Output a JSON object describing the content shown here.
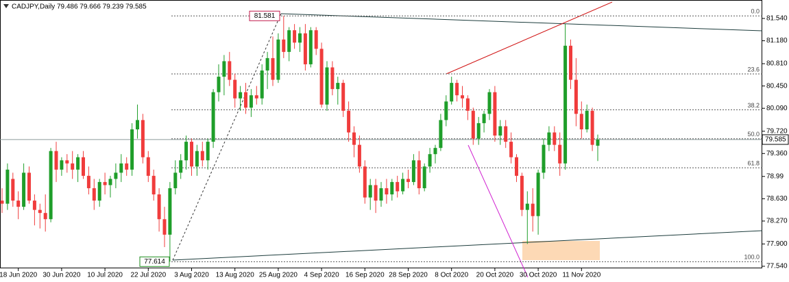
{
  "chart_data": {
    "type": "candlestick",
    "title": "CADJPY,Daily  79.486 79.666 79.239 79.585",
    "up_color": "#1f9e2a",
    "down_color": "#f03c3c",
    "series": {
      "open": [
        78.6,
        78.55,
        78.95,
        78.6,
        78.5,
        79.05,
        78.6,
        78.45,
        78.4,
        78.3,
        79.4,
        79.1,
        79.25,
        79.2,
        79.1,
        79.3,
        79,
        78.8,
        78.6,
        78.9,
        78.85,
        78.95,
        79.05,
        79.2,
        79.1,
        79.75,
        79.9,
        79.3,
        79,
        78.7,
        78.3,
        78.05,
        78.8,
        79.05,
        79.25,
        79.55,
        79.15,
        79.4,
        79.25,
        79.55,
        80.35,
        80.6,
        80.85,
        80.55,
        80.25,
        80.35,
        80.1,
        80.3,
        80.25,
        80.7,
        80.9,
        80.55,
        81.2,
        81,
        81.35,
        81.15,
        81.3,
        80.8,
        81.35,
        81.05,
        80.15,
        80.75,
        80.4,
        80.5,
        80.05,
        79.7,
        79.5,
        79.15,
        78.65,
        78.85,
        78.6,
        78.8,
        78.7,
        78.9,
        78.75,
        78.95,
        78.9,
        79.25,
        78.8,
        79.15,
        79.35,
        79.45,
        79.9,
        80.2,
        80.5,
        80.3,
        80.25,
        80.05,
        79.6,
        79.85,
        80,
        80.35,
        79.65,
        79.8,
        79.55,
        79.3,
        79,
        78.45,
        78.55,
        78.35,
        79.05,
        79.5,
        79.7,
        79.5,
        79.2,
        81.1,
        80.55,
        80,
        79.75,
        80.05,
        79.486
      ],
      "high": [
        78.8,
        79.2,
        79.05,
        78.75,
        79.2,
        79.15,
        78.7,
        78.55,
        78.7,
        79.45,
        79.55,
        79.3,
        79.35,
        79.4,
        79.35,
        79.4,
        79.15,
        78.95,
        78.95,
        79.05,
        79,
        79.2,
        79.35,
        79.3,
        79.85,
        80.15,
        80,
        79.4,
        79.1,
        78.8,
        78.5,
        78.9,
        79.25,
        79.35,
        79.65,
        79.6,
        79.5,
        79.55,
        79.6,
        80.4,
        80.8,
        80.95,
        81,
        80.65,
        80.45,
        80.5,
        80.4,
        80.45,
        80.8,
        81,
        81.25,
        81.3,
        81.581,
        81.4,
        81.45,
        81.4,
        81.45,
        81.4,
        81.4,
        81.15,
        80.85,
        80.85,
        80.6,
        80.55,
        80.2,
        79.8,
        79.65,
        79.25,
        78.95,
        78.95,
        78.9,
        78.95,
        78.95,
        79,
        79.05,
        79.1,
        79.35,
        79.4,
        79.2,
        79.45,
        79.5,
        80,
        80.3,
        80.6,
        80.55,
        80.45,
        80.3,
        80.1,
        79.95,
        80.05,
        80.4,
        80.45,
        79.9,
        79.9,
        79.7,
        79.35,
        79.05,
        78.75,
        78.8,
        79.1,
        79.6,
        79.8,
        79.8,
        79.7,
        81.45,
        81.2,
        80.9,
        80.2,
        80.15,
        80.1,
        79.666
      ],
      "low": [
        78.4,
        78.45,
        78.5,
        78.3,
        78.45,
        78.55,
        78.2,
        78.15,
        78.1,
        78.25,
        78.9,
        79,
        79.05,
        78.95,
        78.9,
        78.95,
        78.7,
        78.45,
        78.5,
        78.7,
        78.65,
        78.8,
        78.9,
        79,
        79,
        79.6,
        79.2,
        78.9,
        78.6,
        78.1,
        77.85,
        77.614,
        78.7,
        78.95,
        79.1,
        79,
        79,
        79.15,
        79.1,
        79.45,
        80.2,
        80.3,
        80.45,
        80.1,
        80.05,
        80,
        79.95,
        80.15,
        80.15,
        80.4,
        80.45,
        80.5,
        80.9,
        80.85,
        81.05,
        81,
        80.7,
        80.75,
        80.95,
        80.1,
        80.05,
        80.3,
        80.15,
        79.95,
        79.55,
        79.3,
        79.05,
        78.55,
        78.45,
        78.4,
        78.5,
        78.55,
        78.6,
        78.65,
        78.7,
        78.8,
        78.85,
        78.7,
        78.75,
        79.05,
        79.2,
        79.4,
        79.8,
        80.15,
        80.2,
        80.1,
        79.9,
        79.5,
        79.5,
        79.7,
        79.9,
        79.55,
        79.5,
        79.45,
        79.2,
        78.9,
        78.35,
        77.9,
        78.1,
        78.05,
        78.95,
        79.4,
        79.4,
        79,
        79.1,
        80.4,
        79.8,
        79.6,
        79.7,
        79.4,
        79.239
      ],
      "close": [
        78.55,
        79.1,
        78.6,
        78.5,
        79.05,
        78.6,
        78.45,
        78.4,
        78.3,
        79.4,
        79.1,
        79.25,
        79.2,
        79.1,
        79.3,
        79,
        78.8,
        78.6,
        78.9,
        78.85,
        78.95,
        79.05,
        79.2,
        79.1,
        79.75,
        79.9,
        79.3,
        79,
        78.7,
        78.3,
        78.05,
        78.8,
        79.05,
        79.25,
        79.55,
        79.15,
        79.4,
        79.25,
        79.55,
        80.35,
        80.6,
        80.85,
        80.55,
        80.25,
        80.35,
        80.1,
        80.3,
        80.25,
        80.7,
        80.9,
        80.55,
        81.2,
        81,
        81.35,
        81.15,
        81.3,
        80.8,
        81.35,
        81.05,
        80.15,
        80.75,
        80.4,
        80.5,
        80.05,
        79.7,
        79.5,
        79.15,
        78.65,
        78.85,
        78.6,
        78.8,
        78.7,
        78.9,
        78.75,
        78.95,
        78.9,
        79.25,
        78.8,
        79.15,
        79.35,
        79.45,
        79.9,
        80.2,
        80.5,
        80.3,
        80.25,
        80.05,
        79.6,
        79.85,
        80,
        80.35,
        79.65,
        79.8,
        79.55,
        79.3,
        79,
        78.45,
        78.55,
        78.35,
        79.05,
        79.5,
        79.7,
        79.5,
        79.2,
        81.1,
        80.55,
        80,
        79.75,
        80.05,
        79.5,
        79.585
      ]
    },
    "ylim": [
      77.507,
      81.838
    ],
    "yticks": [
      {
        "value": 81.54,
        "label": "81.540"
      },
      {
        "value": 81.18,
        "label": "81.180"
      },
      {
        "value": 80.81,
        "label": "80.810"
      },
      {
        "value": 80.45,
        "label": "80.450"
      },
      {
        "value": 80.09,
        "label": "80.090"
      },
      {
        "value": 79.72,
        "label": "79.720"
      },
      {
        "value": 79.36,
        "label": "79.360"
      },
      78.99,
      {
        "value": 78.63,
        "label": "78.630"
      },
      {
        "value": 78.27,
        "label": "78.270"
      },
      {
        "value": 77.9,
        "label": "77.900"
      },
      {
        "value": 77.54,
        "label": "77.540"
      }
    ],
    "xticks": [
      {
        "value": 3,
        "label": "18 Jun 2020"
      },
      {
        "value": 11,
        "label": "30 Jun 2020"
      },
      {
        "value": 19,
        "label": "10 Jul 2020"
      },
      {
        "value": 27,
        "label": "22 Jul 2020"
      },
      {
        "value": 35,
        "label": "3 Aug 2020"
      },
      {
        "value": 43,
        "label": "13 Aug 2020"
      },
      {
        "value": 51,
        "label": "25 Aug 2020"
      },
      {
        "value": 59,
        "label": "4 Sep 2020"
      },
      {
        "value": 67,
        "label": "16 Sep 2020"
      },
      {
        "value": 75,
        "label": "28 Sep 2020"
      },
      {
        "value": 83,
        "label": "8 Oct 2020"
      },
      {
        "value": 91,
        "label": "20 Oct 2020"
      },
      {
        "value": 99,
        "label": "30 Oct 2020"
      },
      {
        "value": 107,
        "label": "11 Nov 2020"
      }
    ],
    "last_price": 79.585,
    "fibonacci": {
      "high": 81.581,
      "low": 77.614,
      "levels": [
        {
          "value": 0,
          "label": "0.0"
        },
        23.6,
        38.2,
        {
          "value": 50,
          "label": "50.0"
        },
        61.8,
        {
          "value": 100,
          "label": "100.0"
        }
      ]
    }
  }
}
